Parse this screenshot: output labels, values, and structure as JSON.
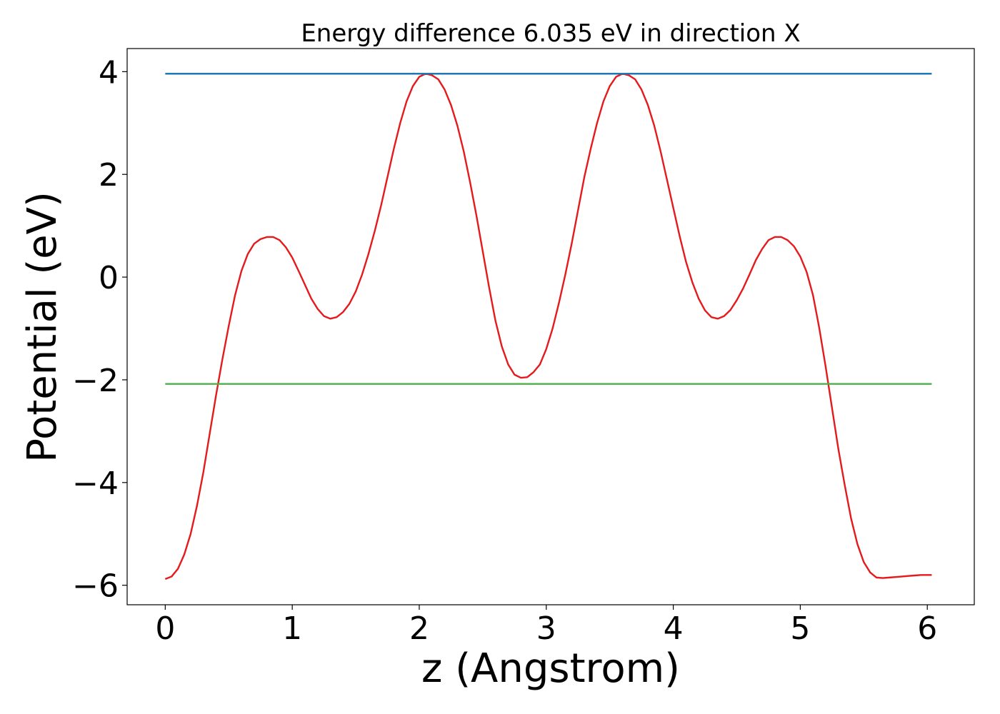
{
  "chart_data": {
    "type": "line",
    "title": "Energy difference 6.035 eV in direction X",
    "xlabel": "z (Angstrom)",
    "ylabel": "Potential (eV)",
    "xlim": [
      -0.3,
      6.37
    ],
    "ylim": [
      -6.38,
      4.45
    ],
    "xticks": [
      0,
      1,
      2,
      3,
      4,
      5,
      6
    ],
    "xtick_labels": [
      "0",
      "1",
      "2",
      "3",
      "4",
      "5",
      "6"
    ],
    "yticks": [
      -6,
      -4,
      -2,
      0,
      2,
      4
    ],
    "ytick_labels": [
      "−6",
      "−4",
      "−2",
      "0",
      "2",
      "4"
    ],
    "grid": false,
    "legend": "none",
    "series": [
      {
        "color": "#e41a1c",
        "x": [
          0,
          0.05,
          0.1,
          0.15,
          0.2,
          0.25,
          0.3,
          0.35,
          0.4,
          0.45,
          0.5,
          0.55,
          0.6,
          0.65,
          0.7,
          0.75,
          0.8,
          0.85,
          0.9,
          0.95,
          1.0,
          1.05,
          1.1,
          1.15,
          1.2,
          1.25,
          1.3,
          1.35,
          1.4,
          1.45,
          1.5,
          1.55,
          1.6,
          1.65,
          1.7,
          1.75,
          1.8,
          1.85,
          1.9,
          1.95,
          2.0,
          2.05,
          2.1,
          2.15,
          2.2,
          2.25,
          2.3,
          2.35,
          2.4,
          2.45,
          2.5,
          2.55,
          2.6,
          2.65,
          2.7,
          2.75,
          2.8,
          2.85,
          2.9,
          2.95,
          3.0,
          3.05,
          3.1,
          3.15,
          3.2,
          3.25,
          3.3,
          3.35,
          3.4,
          3.45,
          3.5,
          3.55,
          3.6,
          3.65,
          3.7,
          3.75,
          3.8,
          3.85,
          3.9,
          3.95,
          4.0,
          4.05,
          4.1,
          4.15,
          4.2,
          4.25,
          4.3,
          4.35,
          4.4,
          4.45,
          4.5,
          4.55,
          4.6,
          4.65,
          4.7,
          4.75,
          4.8,
          4.85,
          4.9,
          4.95,
          5.0,
          5.05,
          5.1,
          5.15,
          5.2,
          5.25,
          5.3,
          5.35,
          5.4,
          5.45,
          5.5,
          5.55,
          5.6,
          5.65,
          5.7,
          5.75,
          5.8,
          5.85,
          5.9,
          5.95,
          6.0,
          6.035
        ],
        "y": [
          -5.88,
          -5.83,
          -5.68,
          -5.4,
          -5.0,
          -4.45,
          -3.8,
          -3.05,
          -2.3,
          -1.6,
          -0.95,
          -0.35,
          0.12,
          0.45,
          0.65,
          0.74,
          0.78,
          0.78,
          0.72,
          0.58,
          0.38,
          0.12,
          -0.15,
          -0.42,
          -0.62,
          -0.76,
          -0.81,
          -0.78,
          -0.68,
          -0.52,
          -0.28,
          0.05,
          0.45,
          0.9,
          1.4,
          1.95,
          2.5,
          3.0,
          3.42,
          3.72,
          3.9,
          3.96,
          3.93,
          3.85,
          3.65,
          3.35,
          2.95,
          2.45,
          1.85,
          1.2,
          0.5,
          -0.2,
          -0.85,
          -1.35,
          -1.7,
          -1.9,
          -1.96,
          -1.95,
          -1.85,
          -1.7,
          -1.4,
          -1.0,
          -0.5,
          0.05,
          0.65,
          1.3,
          1.95,
          2.5,
          3.0,
          3.42,
          3.72,
          3.9,
          3.96,
          3.93,
          3.85,
          3.65,
          3.35,
          2.95,
          2.45,
          1.9,
          1.35,
          0.8,
          0.3,
          -0.1,
          -0.42,
          -0.65,
          -0.78,
          -0.81,
          -0.76,
          -0.64,
          -0.45,
          -0.22,
          0.05,
          0.33,
          0.55,
          0.72,
          0.78,
          0.78,
          0.72,
          0.6,
          0.4,
          0.1,
          -0.35,
          -1.0,
          -1.75,
          -2.55,
          -3.35,
          -4.05,
          -4.7,
          -5.2,
          -5.55,
          -5.75,
          -5.85,
          -5.86,
          -5.85,
          -5.84,
          -5.83,
          -5.82,
          -5.81,
          -5.8,
          -5.8,
          -5.8
        ]
      },
      {
        "color": "#1f78b4",
        "x": [
          0,
          6.035
        ],
        "y": [
          3.96,
          3.96
        ]
      },
      {
        "color": "#4daf4a",
        "x": [
          0,
          6.035
        ],
        "y": [
          -2.08,
          -2.08
        ]
      }
    ]
  }
}
